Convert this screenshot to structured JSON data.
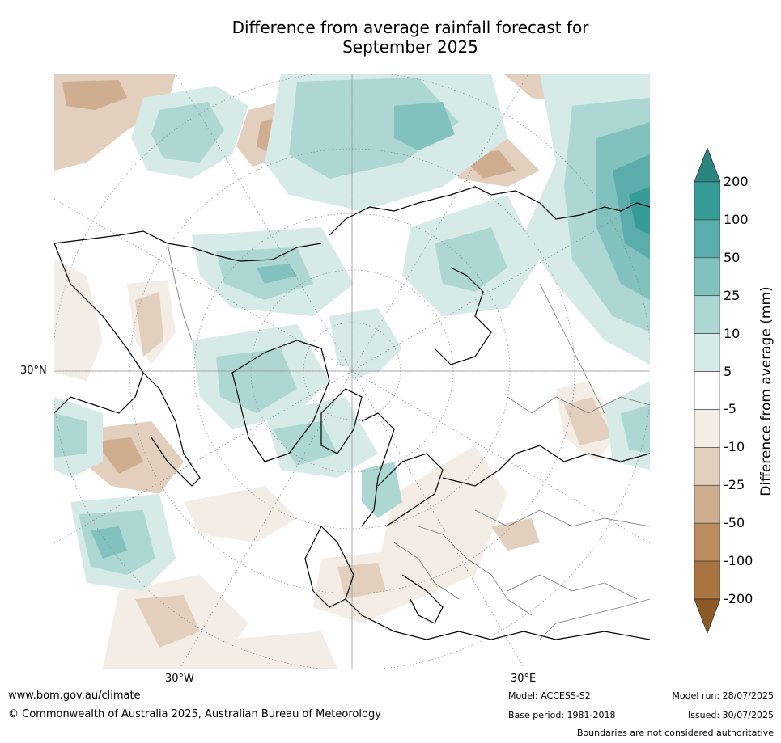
{
  "title_line1": "Difference from average rainfall forecast for",
  "title_line2": "September 2025",
  "map": {
    "projection": "north polar stereographic",
    "lat_label_left": "30°N",
    "lon_label_left": "30°W",
    "lon_label_right": "30°E"
  },
  "colorbar": {
    "label": "Difference from average (mm)",
    "ticks": [
      "200",
      "100",
      "50",
      "25",
      "10",
      "5",
      "-5",
      "-10",
      "-25",
      "-50",
      "-100",
      "-200"
    ],
    "colors": [
      "#2a8480",
      "#359c98",
      "#5aadaa",
      "#82c2be",
      "#acd7d3",
      "#d6ebe8",
      "#ffffff",
      "#f3ede6",
      "#e2cfbd",
      "#cfae90",
      "#bc8c5f",
      "#aa7441",
      "#8d5a25"
    ]
  },
  "footer": {
    "website": "www.bom.gov.au/climate",
    "copyright": "© Commonwealth of Australia 2025, Australian Bureau of Meteorology",
    "model": "Model: ACCESS-S2",
    "base_period": "Base period: 1981-2018",
    "model_run": "Model run: 28/07/2025",
    "issued": "Issued: 30/07/2025",
    "disclaimer": "Boundaries are not considered authoritative"
  }
}
